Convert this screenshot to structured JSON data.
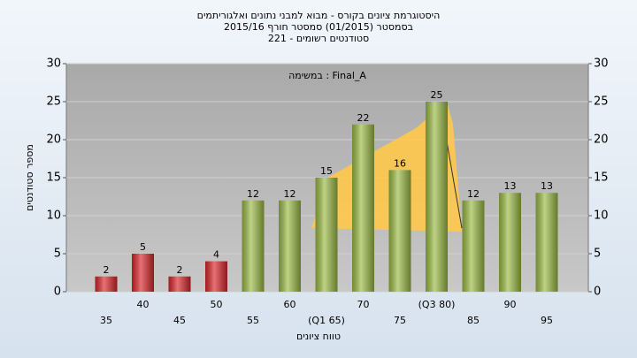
{
  "chart_data": {
    "type": "bar",
    "title": "היסטוגרמת ציונים בקורס - מבוא למבני נתונים ואלגוריתמים",
    "subtitle": "בסמסטר  (01/2015)  סמסטר חורף 2015/16",
    "subtitle2": "סטודנטים רשומים - 221",
    "annotation": "במשימה : Final_A",
    "x_label": "טווח ציונים",
    "y_label": "מספר סטודנטים",
    "categories": [
      "35",
      "40",
      "45",
      "50",
      "55",
      "60",
      "(Q1 65)",
      "70",
      "75",
      "(Q3 80)",
      "85",
      "90",
      "95"
    ],
    "values": [
      2,
      5,
      2,
      4,
      12,
      12,
      15,
      22,
      16,
      25,
      12,
      13,
      13
    ],
    "colors": [
      "#d9262b",
      "#d9262b",
      "#d9262b",
      "#d9262b",
      "#9bbb45",
      "#9bbb45",
      "#9bbb45",
      "#9bbb45",
      "#9bbb45",
      "#9bbb45",
      "#9bbb45",
      "#9bbb45",
      "#9bbb45"
    ],
    "ylim": [
      0,
      30
    ],
    "yticks": [
      0,
      5,
      10,
      15,
      20,
      25,
      30
    ],
    "y2lim": [
      0,
      30
    ],
    "y2ticks": [
      0,
      5,
      10,
      15,
      20,
      25,
      30
    ],
    "grid": true
  }
}
